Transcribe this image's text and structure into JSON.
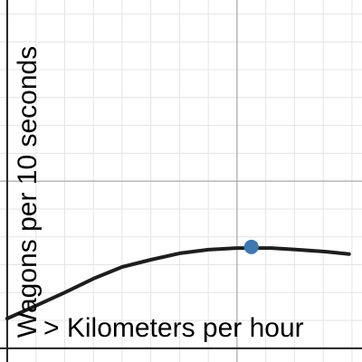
{
  "chart_data": {
    "type": "line",
    "x_label": "> Kilometers per hour",
    "y_label": "Wagons per 10 seconds",
    "x": [
      0,
      1,
      2,
      3,
      4,
      5,
      6,
      7,
      8,
      9.2,
      10.1,
      11.1,
      11.9
    ],
    "series": [
      {
        "color": "#1e1e1e",
        "values": [
          1.07,
          1.53,
          2.0,
          2.5,
          2.92,
          3.18,
          3.41,
          3.54,
          3.6,
          3.6,
          3.54,
          3.47,
          3.38
        ]
      }
    ],
    "point": {
      "x": 8.5,
      "y": 3.64,
      "color": "#3c78b4"
    },
    "xlim": [
      -0.25,
      12.35
    ],
    "ylim": [
      -0.49,
      12.5
    ],
    "xticks": [
      1,
      2,
      3,
      4,
      5,
      6,
      7,
      8,
      9,
      10,
      11,
      12
    ],
    "yticks": [
      1,
      2,
      3,
      4,
      5,
      6,
      7,
      8,
      9,
      10,
      11,
      12
    ],
    "xmajor": [
      8
    ],
    "ymajor": [
      6
    ],
    "grid": true
  }
}
